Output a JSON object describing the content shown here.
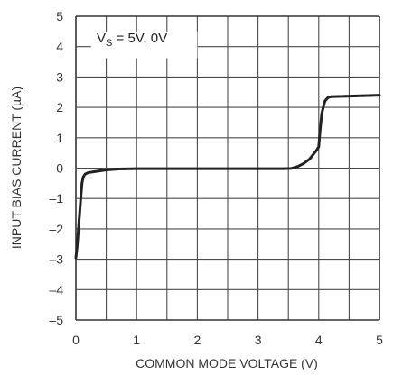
{
  "chart_data": {
    "type": "line",
    "title": "",
    "xlabel": "COMMON MODE VOLTAGE (V)",
    "ylabel": "INPUT BIAS CURRENT (µA)",
    "xlim": [
      0,
      5
    ],
    "ylim": [
      -5,
      5
    ],
    "xticks": [
      "0",
      "1",
      "2",
      "3",
      "4",
      "5"
    ],
    "yticks": [
      "5",
      "4",
      "3",
      "2",
      "1",
      "0",
      "–1",
      "–2",
      "–3",
      "–4",
      "–5"
    ],
    "x_gridlines": [
      0,
      0.5,
      1,
      1.5,
      2,
      2.5,
      3,
      3.5,
      4,
      4.5,
      5
    ],
    "y_gridlines": [
      -5,
      -4,
      -3,
      -2,
      -1,
      0,
      1,
      2,
      3,
      4,
      5
    ],
    "grid": true,
    "annotation": {
      "main": "V",
      "sub": "S",
      "rest": " = 5V, 0V"
    },
    "series": [
      {
        "x": [
          0.0,
          0.02,
          0.05,
          0.08,
          0.1,
          0.12,
          0.15,
          0.2,
          0.3,
          0.5,
          0.7,
          1.0,
          1.5,
          2.0,
          2.5,
          3.0,
          3.4,
          3.55,
          3.65,
          3.75,
          3.85,
          3.95,
          4.0,
          4.02,
          4.05,
          4.1,
          4.15,
          4.2,
          4.5,
          5.0
        ],
        "y": [
          -2.95,
          -2.6,
          -1.8,
          -1.0,
          -0.5,
          -0.3,
          -0.2,
          -0.15,
          -0.12,
          -0.06,
          -0.03,
          -0.02,
          -0.02,
          -0.02,
          -0.02,
          -0.02,
          -0.02,
          -0.01,
          0.05,
          0.15,
          0.3,
          0.55,
          0.7,
          1.2,
          1.8,
          2.2,
          2.32,
          2.35,
          2.37,
          2.4
        ]
      }
    ],
    "colors": {
      "line": "#222222",
      "grid": "#4a4a4a",
      "frame": "#333333"
    }
  }
}
